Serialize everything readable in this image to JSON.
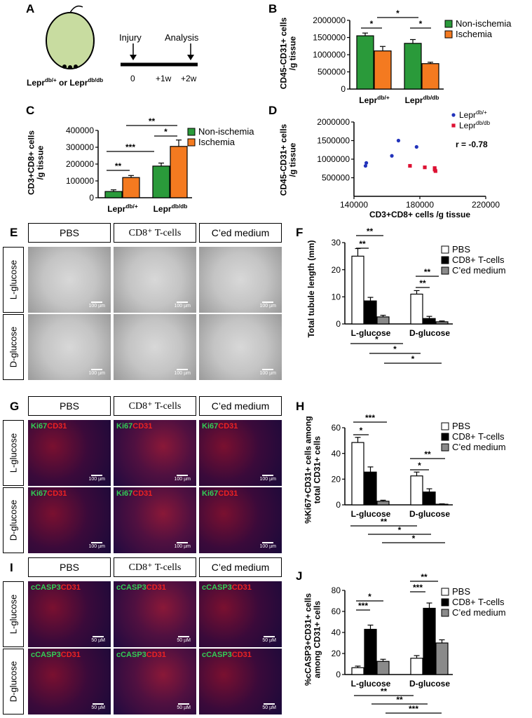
{
  "panels": {
    "A": {
      "label": "A",
      "mouse_label": "Lepr",
      "mouse_sup1": "db/+",
      "mouse_mid": " or Lepr",
      "mouse_sup2": "db/db",
      "injury": "Injury",
      "analysis": "Analysis",
      "t0": "0",
      "t1": "+1w",
      "t2": "+2w"
    },
    "B": {
      "label": "B"
    },
    "C": {
      "label": "C"
    },
    "D": {
      "label": "D"
    },
    "E": {
      "label": "E"
    },
    "F": {
      "label": "F"
    },
    "G": {
      "label": "G"
    },
    "H": {
      "label": "H"
    },
    "I": {
      "label": "I"
    },
    "J": {
      "label": "J"
    }
  },
  "image_panels": {
    "columns": [
      "PBS",
      "CD8⁺ T-cells",
      "C’ed medium"
    ],
    "rows": [
      "L-glucose",
      "D-glucose"
    ],
    "ki67": "Ki67",
    "cd31": "CD31",
    "ccasp3": "cCASP3",
    "scale_E": "100 µm",
    "scale_G": "100 µm",
    "scale_I": "50 µM"
  },
  "chart_data": [
    {
      "id": "B",
      "type": "bar",
      "ylabel": "CD45-CD31+ cells\n/g tissue",
      "categories": [
        "Lepr|db/+",
        "Lepr|db/db"
      ],
      "series": [
        {
          "name": "Non-ischemia",
          "color": "#2a9a3a",
          "values": [
            1550000,
            1330000
          ],
          "err": [
            80000,
            110000
          ]
        },
        {
          "name": "Ischemia",
          "color": "#f47a20",
          "values": [
            1110000,
            740000
          ],
          "err": [
            130000,
            40000
          ]
        }
      ],
      "ylim": [
        0,
        2000000
      ],
      "yticks": [
        "0",
        "500000",
        "1000000",
        "1500000",
        "2000000"
      ],
      "sig": [
        "*",
        "*",
        "*"
      ]
    },
    {
      "id": "C",
      "type": "bar",
      "ylabel": "CD3+CD8+ cells\n/g tissue",
      "categories": [
        "Lepr|db/+",
        "Lepr|db/db"
      ],
      "series": [
        {
          "name": "Non-ischemia",
          "color": "#2a9a3a",
          "values": [
            37000,
            188000
          ],
          "err": [
            10000,
            18000
          ]
        },
        {
          "name": "Ischemia",
          "color": "#f47a20",
          "values": [
            120000,
            305000
          ],
          "err": [
            12000,
            38000
          ]
        }
      ],
      "ylim": [
        0,
        400000
      ],
      "yticks": [
        "0",
        "100000",
        "200000",
        "300000",
        "400000"
      ],
      "sig": [
        "**",
        "***",
        "*",
        "**"
      ]
    },
    {
      "id": "D",
      "type": "scatter",
      "xlabel": "CD3+CD8+ cells /g tissue",
      "ylabel": "CD45-CD31+ cells\n/g tissue",
      "xlim": [
        140000,
        220000
      ],
      "ylim": [
        0,
        2000000
      ],
      "xticks": [
        "140000",
        "180000",
        "220000"
      ],
      "yticks": [
        "500000",
        "1000000",
        "1500000",
        "2000000"
      ],
      "annotation": "r = -0.78",
      "series": [
        {
          "name": "Lepr|db/+",
          "color": "#2233bb",
          "marker": "circle",
          "x": [
            147000,
            147500,
            163000,
            167000,
            178000
          ],
          "y": [
            820000,
            900000,
            1090000,
            1500000,
            1330000
          ]
        },
        {
          "name": "Lepr|db/db",
          "color": "#dd1133",
          "marker": "square",
          "x": [
            174000,
            183000,
            189000,
            189000,
            189500
          ],
          "y": [
            820000,
            780000,
            760000,
            720000,
            680000
          ]
        }
      ]
    },
    {
      "id": "F",
      "type": "bar",
      "ylabel": "Total tubule length (mm)",
      "categories": [
        "L-glucose",
        "D-glucose"
      ],
      "series": [
        {
          "name": "PBS",
          "color": "#ffffff",
          "values": [
            25,
            11
          ],
          "err": [
            2.8,
            1.3
          ]
        },
        {
          "name": "CD8+ T-cells",
          "color": "#000000",
          "values": [
            8.5,
            2
          ],
          "err": [
            1.3,
            0.8
          ]
        },
        {
          "name": "C’ed medium",
          "color": "#8a8a8a",
          "values": [
            2.6,
            0.8
          ],
          "err": [
            0.6,
            0.3
          ]
        }
      ],
      "ylim": [
        0,
        30
      ],
      "yticks": [
        "0",
        "10",
        "20",
        "30"
      ],
      "sig": [
        "**",
        "**",
        "**",
        "**",
        "*",
        "*",
        "*"
      ]
    },
    {
      "id": "H",
      "type": "bar",
      "ylabel": "%Ki67+CD31+ cells among\ntotal CD31+ cells",
      "categories": [
        "L-glucose",
        "D-glucose"
      ],
      "series": [
        {
          "name": "PBS",
          "color": "#ffffff",
          "values": [
            48.5,
            22.5
          ],
          "err": [
            4,
            3
          ]
        },
        {
          "name": "CD8+ T-cells",
          "color": "#000000",
          "values": [
            25.5,
            10
          ],
          "err": [
            4,
            2.5
          ]
        },
        {
          "name": "C’ed medium",
          "color": "#8a8a8a",
          "values": [
            2.8,
            0.5
          ],
          "err": [
            0.8,
            0.3
          ]
        }
      ],
      "ylim": [
        0,
        60
      ],
      "yticks": [
        "0",
        "20",
        "40",
        "60"
      ],
      "sig": [
        "***",
        "*",
        "**",
        "*",
        "**",
        "*",
        "*"
      ]
    },
    {
      "id": "J",
      "type": "bar",
      "ylabel": "%cCASP3+CD31+ cells\namong CD31+ cells",
      "categories": [
        "L-glucose",
        "D-glucose"
      ],
      "series": [
        {
          "name": "PBS",
          "color": "#ffffff",
          "values": [
            6.5,
            15.5
          ],
          "err": [
            1.5,
            2.5
          ]
        },
        {
          "name": "CD8+ T-cells",
          "color": "#000000",
          "values": [
            43,
            63
          ],
          "err": [
            4,
            5
          ]
        },
        {
          "name": "C’ed medium",
          "color": "#8a8a8a",
          "values": [
            12.5,
            30
          ],
          "err": [
            2,
            3
          ]
        }
      ],
      "ylim": [
        0,
        80
      ],
      "yticks": [
        "0",
        "20",
        "40",
        "60",
        "80"
      ],
      "sig": [
        "*",
        "***",
        "**",
        "***",
        "**",
        "**",
        "***"
      ]
    }
  ]
}
